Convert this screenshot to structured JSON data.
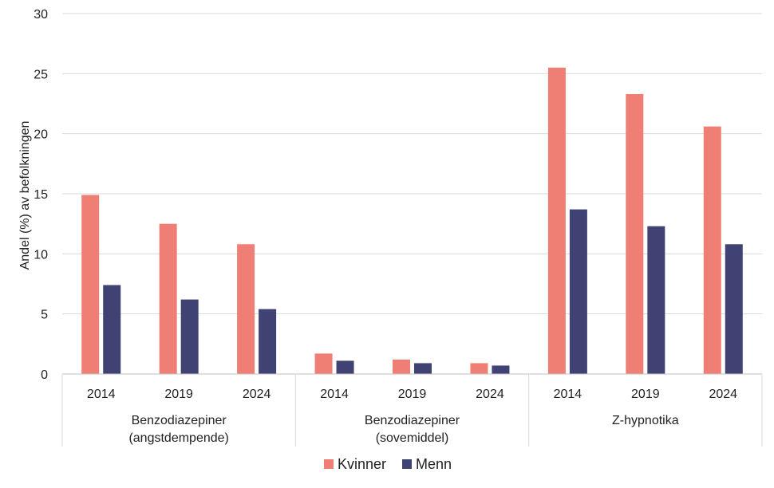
{
  "chart_data": {
    "type": "bar",
    "ylabel": "Andel (%) av befolkningen",
    "ylim": [
      0,
      30
    ],
    "yticks": [
      "0",
      "5",
      "10",
      "15",
      "20",
      "25",
      "30"
    ],
    "groups": [
      {
        "label_lines": [
          "Benzodiazepiner",
          "(angstdempende)"
        ],
        "categories": [
          "2014",
          "2019",
          "2024"
        ]
      },
      {
        "label_lines": [
          "Benzodiazepiner",
          "(sovemiddel)"
        ],
        "categories": [
          "2014",
          "2019",
          "2024"
        ]
      },
      {
        "label_lines": [
          "Z-hypnotika"
        ],
        "categories": [
          "2014",
          "2019",
          "2024"
        ]
      }
    ],
    "series": [
      {
        "name": "Kvinner",
        "color": "#ef7f74",
        "values": [
          14.9,
          12.5,
          10.8,
          1.7,
          1.2,
          0.9,
          25.5,
          23.3,
          20.6
        ]
      },
      {
        "name": "Menn",
        "color": "#3f4272",
        "values": [
          7.4,
          6.2,
          5.4,
          1.1,
          0.9,
          0.7,
          13.7,
          12.3,
          10.8
        ]
      }
    ],
    "grid": true,
    "legend": "bottom"
  }
}
